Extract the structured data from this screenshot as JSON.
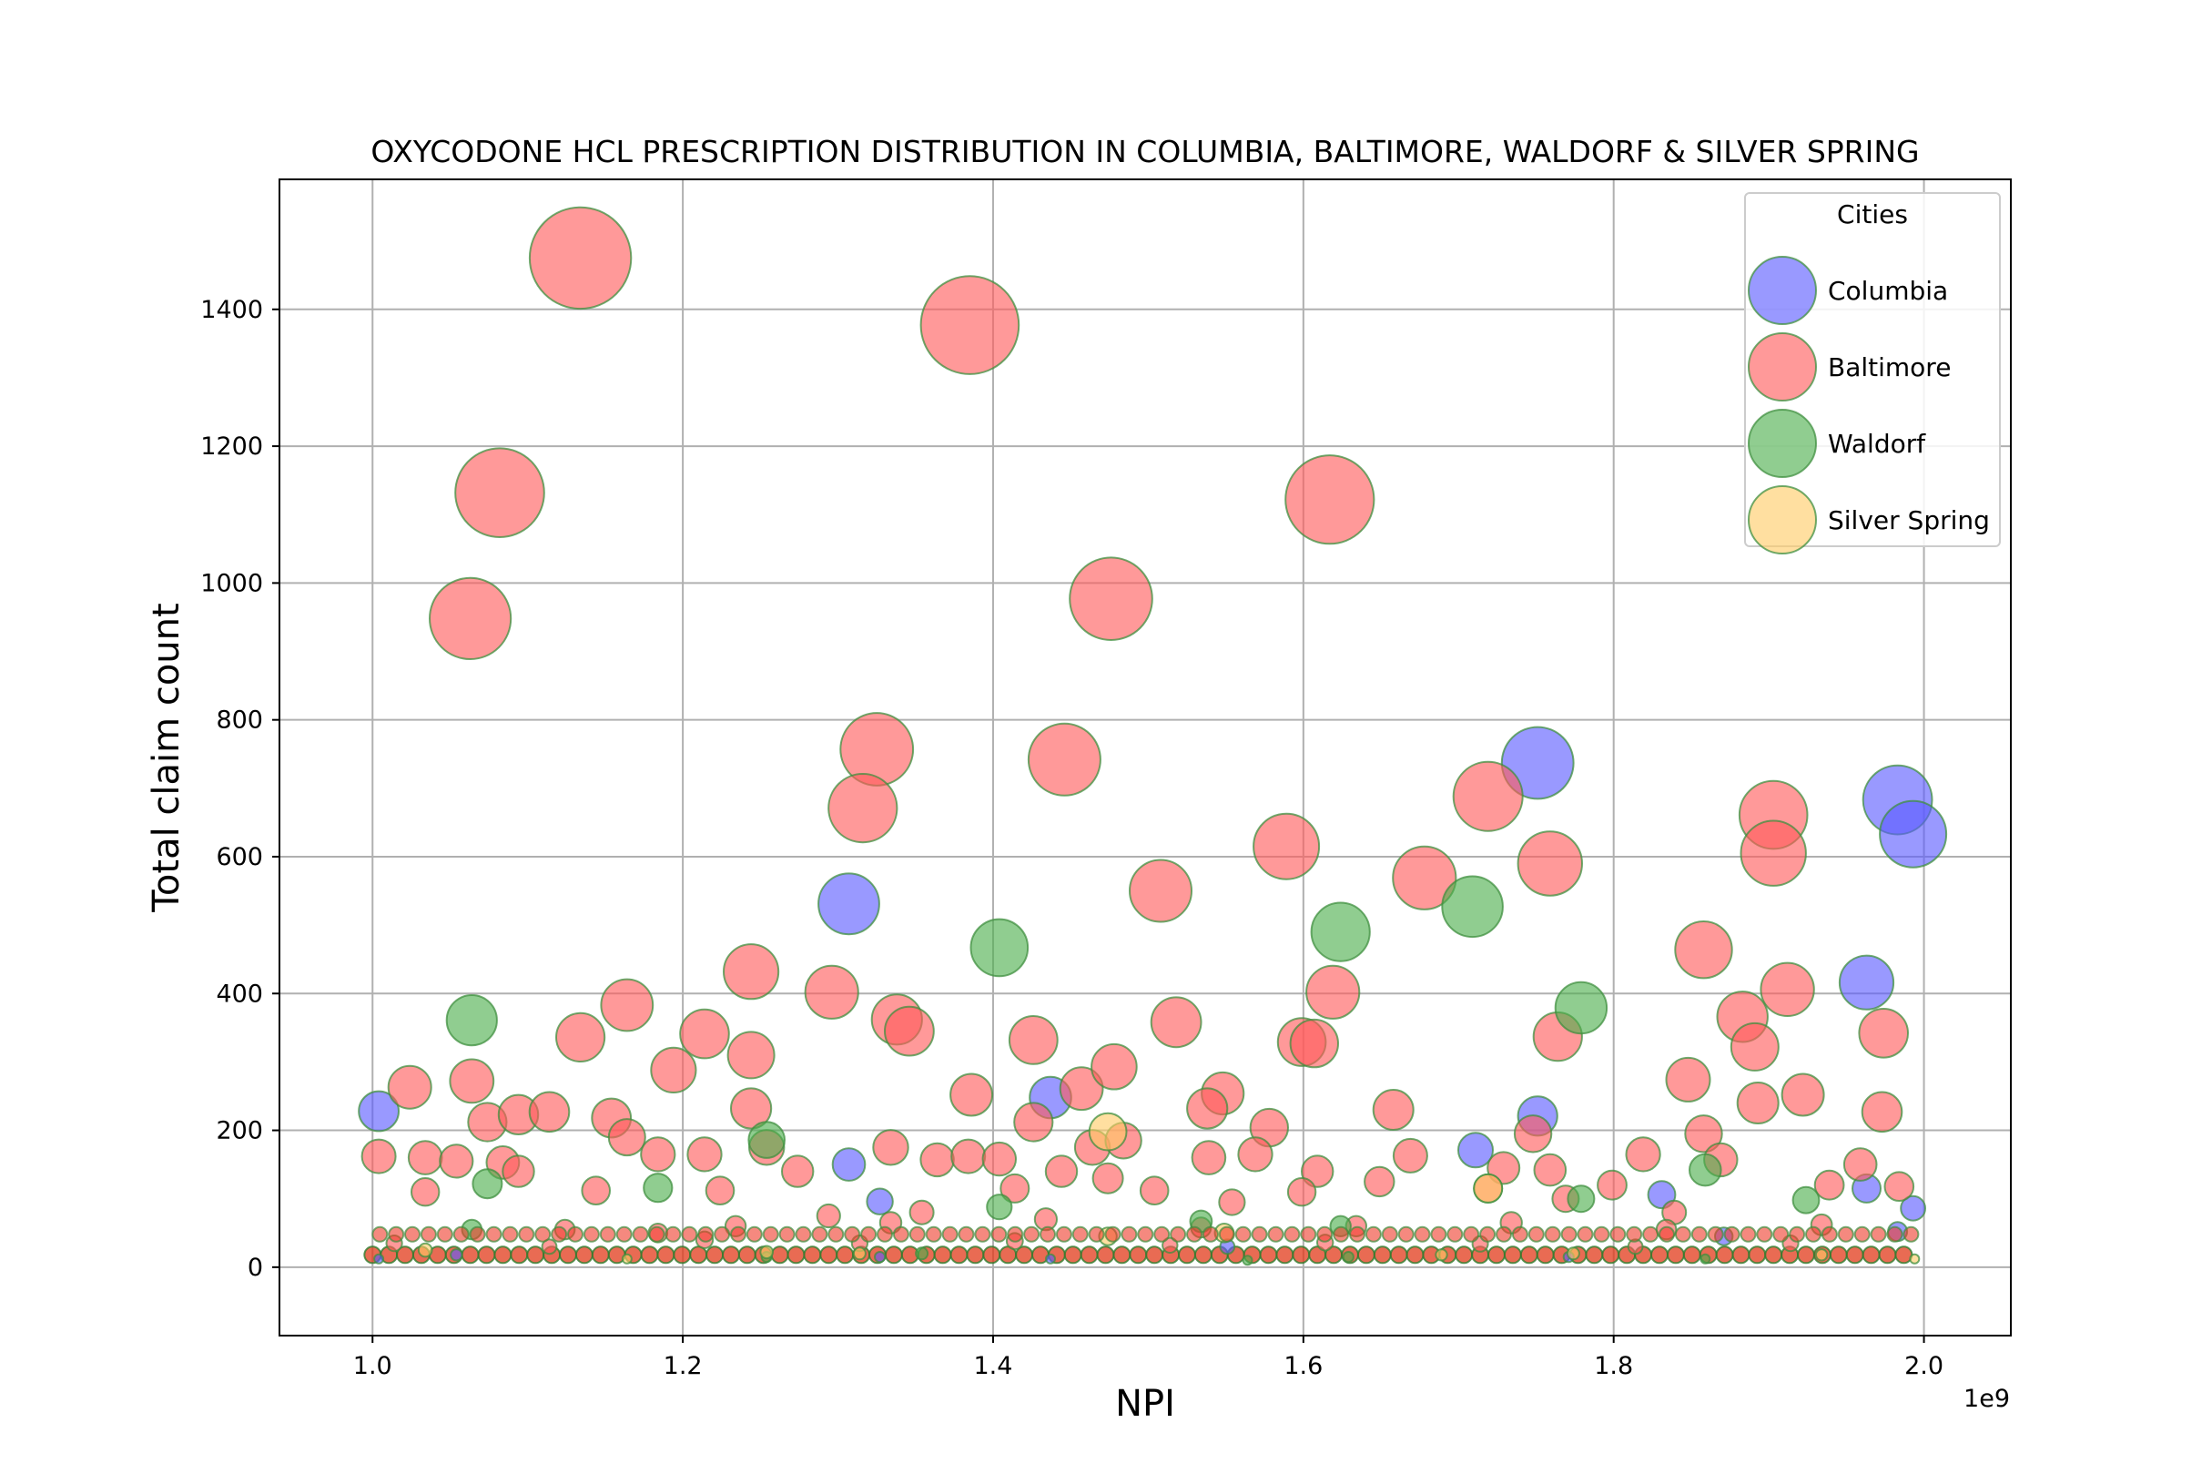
{
  "chart_data": {
    "type": "scatter",
    "title": "OXYCODONE HCL PRESCRIPTION DISTRIBUTION IN COLUMBIA, BALTIMORE, WALDORF & SILVER SPRING",
    "xlabel": "NPI",
    "ylabel": "Total claim count",
    "x_offset_label": "1e9",
    "xlim": [
      0.94,
      2.056
    ],
    "ylim": [
      -100,
      1590
    ],
    "x_ticks": [
      "1.0",
      "1.2",
      "1.4",
      "1.6",
      "1.8",
      "2.0"
    ],
    "x_tick_values": [
      1.0,
      1.2,
      1.4,
      1.6,
      1.8,
      2.0
    ],
    "y_ticks": [
      "0",
      "200",
      "400",
      "600",
      "800",
      "1000",
      "1200",
      "1400"
    ],
    "y_tick_values": [
      0,
      200,
      400,
      600,
      800,
      1000,
      1200,
      1400
    ],
    "grid": true,
    "legend": {
      "title": "Cities",
      "position": "top-right",
      "entries": [
        "Columbia",
        "Baltimore",
        "Waldorf",
        "Silver Spring"
      ]
    },
    "series": [
      {
        "name": "Columbia",
        "color": "#5a5aff",
        "points": [
          [
            1.004,
            228
          ],
          [
            1.004,
            12
          ],
          [
            1.054,
            18
          ],
          [
            1.307,
            531
          ],
          [
            1.307,
            150
          ],
          [
            1.327,
            96
          ],
          [
            1.327,
            15
          ],
          [
            1.437,
            248
          ],
          [
            1.437,
            12
          ],
          [
            1.711,
            171
          ],
          [
            1.751,
            737
          ],
          [
            1.751,
            221
          ],
          [
            1.771,
            15
          ],
          [
            1.831,
            106
          ],
          [
            1.963,
            416
          ],
          [
            1.963,
            115
          ],
          [
            1.983,
            683
          ],
          [
            1.983,
            52
          ],
          [
            1.993,
            633
          ],
          [
            1.993,
            86
          ],
          [
            1.871,
            45
          ],
          [
            1.551,
            30
          ]
        ]
      },
      {
        "name": "Baltimore",
        "color": "#ff5a5a",
        "points": [
          [
            1.134,
            1475
          ],
          [
            1.385,
            1377
          ],
          [
            1.082,
            1132
          ],
          [
            1.617,
            1122
          ],
          [
            1.063,
            948
          ],
          [
            1.476,
            977
          ],
          [
            1.325,
            757
          ],
          [
            1.316,
            671
          ],
          [
            1.446,
            742
          ],
          [
            1.719,
            688
          ],
          [
            1.903,
            661
          ],
          [
            1.903,
            605
          ],
          [
            1.589,
            615
          ],
          [
            1.759,
            590
          ],
          [
            1.678,
            569
          ],
          [
            1.508,
            550
          ],
          [
            1.244,
            432
          ],
          [
            1.296,
            402
          ],
          [
            1.164,
            383
          ],
          [
            1.858,
            464
          ],
          [
            1.619,
            402
          ],
          [
            1.912,
            406
          ],
          [
            1.338,
            362
          ],
          [
            1.346,
            345
          ],
          [
            1.134,
            336
          ],
          [
            1.214,
            341
          ],
          [
            1.244,
            310
          ],
          [
            1.426,
            332
          ],
          [
            1.518,
            358
          ],
          [
            1.599,
            329
          ],
          [
            1.607,
            327
          ],
          [
            1.764,
            337
          ],
          [
            1.883,
            366
          ],
          [
            1.891,
            322
          ],
          [
            1.974,
            342
          ],
          [
            1.024,
            263
          ],
          [
            1.064,
            272
          ],
          [
            1.194,
            288
          ],
          [
            1.386,
            252
          ],
          [
            1.457,
            261
          ],
          [
            1.478,
            293
          ],
          [
            1.548,
            254
          ],
          [
            1.848,
            274
          ],
          [
            1.922,
            252
          ],
          [
            1.074,
            212
          ],
          [
            1.094,
            223
          ],
          [
            1.114,
            227
          ],
          [
            1.154,
            218
          ],
          [
            1.244,
            232
          ],
          [
            1.426,
            212
          ],
          [
            1.538,
            232
          ],
          [
            1.578,
            204
          ],
          [
            1.658,
            230
          ],
          [
            1.748,
            195
          ],
          [
            1.858,
            195
          ],
          [
            1.893,
            240
          ],
          [
            1.973,
            227
          ],
          [
            1.004,
            162
          ],
          [
            1.034,
            160
          ],
          [
            1.054,
            155
          ],
          [
            1.084,
            153
          ],
          [
            1.164,
            190
          ],
          [
            1.184,
            165
          ],
          [
            1.214,
            165
          ],
          [
            1.254,
            175
          ],
          [
            1.274,
            140
          ],
          [
            1.334,
            175
          ],
          [
            1.364,
            157
          ],
          [
            1.384,
            162
          ],
          [
            1.404,
            158
          ],
          [
            1.444,
            140
          ],
          [
            1.464,
            175
          ],
          [
            1.484,
            185
          ],
          [
            1.539,
            160
          ],
          [
            1.569,
            165
          ],
          [
            1.609,
            140
          ],
          [
            1.669,
            163
          ],
          [
            1.729,
            145
          ],
          [
            1.759,
            142
          ],
          [
            1.819,
            165
          ],
          [
            1.869,
            157
          ],
          [
            1.959,
            150
          ],
          [
            1.034,
            110
          ],
          [
            1.094,
            140
          ],
          [
            1.144,
            112
          ],
          [
            1.224,
            112
          ],
          [
            1.294,
            75
          ],
          [
            1.354,
            80
          ],
          [
            1.414,
            115
          ],
          [
            1.474,
            130
          ],
          [
            1.504,
            112
          ],
          [
            1.554,
            95
          ],
          [
            1.599,
            110
          ],
          [
            1.649,
            125
          ],
          [
            1.719,
            115
          ],
          [
            1.769,
            100
          ],
          [
            1.799,
            120
          ],
          [
            1.839,
            80
          ],
          [
            1.939,
            120
          ],
          [
            1.984,
            118
          ],
          [
            1.124,
            55
          ],
          [
            1.184,
            50
          ],
          [
            1.234,
            60
          ],
          [
            1.334,
            65
          ],
          [
            1.434,
            70
          ],
          [
            1.534,
            58
          ],
          [
            1.634,
            60
          ],
          [
            1.734,
            65
          ],
          [
            1.834,
            55
          ],
          [
            1.934,
            62
          ],
          [
            1.014,
            35
          ],
          [
            1.114,
            30
          ],
          [
            1.214,
            40
          ],
          [
            1.314,
            35
          ],
          [
            1.414,
            38
          ],
          [
            1.514,
            32
          ],
          [
            1.614,
            36
          ],
          [
            1.714,
            34
          ],
          [
            1.814,
            30
          ],
          [
            1.914,
            35
          ]
        ]
      },
      {
        "name": "Waldorf",
        "color": "#4caf4c",
        "points": [
          [
            1.064,
            361
          ],
          [
            1.074,
            122
          ],
          [
            1.184,
            116
          ],
          [
            1.254,
            186
          ],
          [
            1.404,
            467
          ],
          [
            1.404,
            88
          ],
          [
            1.624,
            490
          ],
          [
            1.624,
            60
          ],
          [
            1.709,
            527
          ],
          [
            1.779,
            379
          ],
          [
            1.779,
            100
          ],
          [
            1.859,
            142
          ],
          [
            1.859,
            12
          ],
          [
            1.254,
            15
          ],
          [
            1.629,
            15
          ],
          [
            1.064,
            55
          ],
          [
            1.534,
            67
          ],
          [
            1.924,
            98
          ],
          [
            1.564,
            10
          ],
          [
            1.354,
            20
          ]
        ]
      },
      {
        "name": "Silver Spring",
        "color": "#ffcc66",
        "points": [
          [
            1.164,
            12
          ],
          [
            1.034,
            25
          ],
          [
            1.254,
            22
          ],
          [
            1.474,
            198
          ],
          [
            1.474,
            45
          ],
          [
            1.549,
            50
          ],
          [
            1.719,
            115
          ],
          [
            1.774,
            20
          ],
          [
            1.994,
            12
          ],
          [
            1.934,
            18
          ],
          [
            1.314,
            20
          ],
          [
            1.689,
            18
          ]
        ]
      }
    ]
  }
}
